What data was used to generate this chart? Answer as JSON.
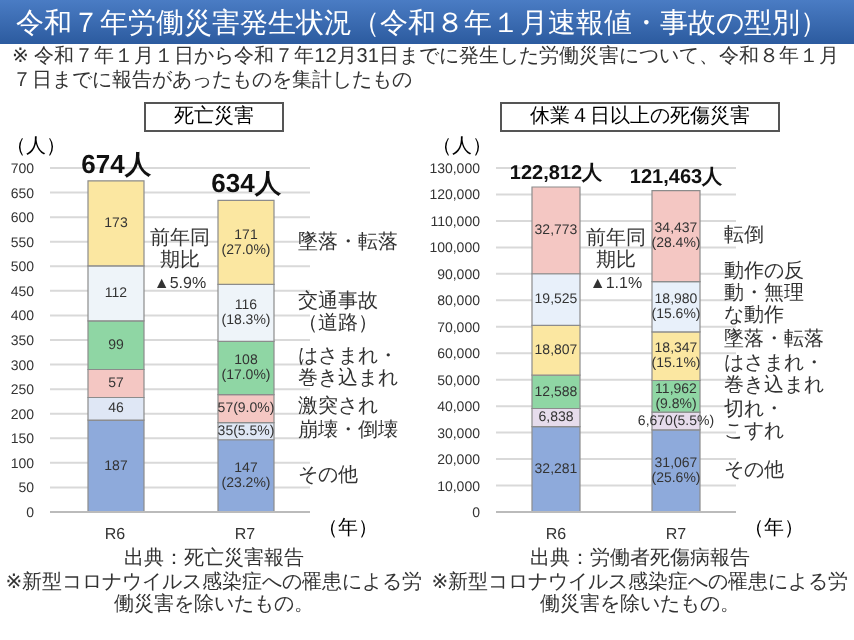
{
  "chart_data": [
    {
      "type": "other",
      "title": "令和７年労働災害発生状況（令和８年１月速報値・事故の型別）",
      "subtitle": "※ 令和７年１月１日から令和７年12月31日までに発生した労働災害について、令和８年１月７日までに報告があったものを集計したもの"
    },
    {
      "type": "bar",
      "title": "死亡災害",
      "ylabel": "（人）",
      "xlabel": "（年）",
      "categories": [
        "R6",
        "R7"
      ],
      "stacked": true,
      "grid": "y",
      "ylim": [
        0,
        700
      ],
      "yticks": [
        0,
        50,
        100,
        150,
        200,
        250,
        300,
        350,
        400,
        450,
        500,
        550,
        600,
        650,
        700
      ],
      "series": [
        {
          "name": "その他",
          "color": "#8eaadb",
          "values": [
            187,
            147
          ],
          "value_labels": [
            "187",
            "147 (23.2%)"
          ]
        },
        {
          "name": "崩壊・倒壊",
          "color": "#dfe7f5",
          "values": [
            46,
            35
          ],
          "value_labels": [
            "46",
            "35(5.5%)"
          ]
        },
        {
          "name": "激突され",
          "color": "#f4c7c3",
          "values": [
            57,
            57
          ],
          "value_labels": [
            "57",
            "57(9.0%)"
          ]
        },
        {
          "name": "はさまれ・巻き込まれ",
          "color": "#8fd6a4",
          "values": [
            99,
            108
          ],
          "value_labels": [
            "99",
            "108 (17.0%)"
          ]
        },
        {
          "name": "交通事故（道路）",
          "color": "#eef4f9",
          "values": [
            112,
            116
          ],
          "value_labels": [
            "112",
            "116 (18.3%)"
          ]
        },
        {
          "name": "墜落・転落",
          "color": "#fbe7a1",
          "values": [
            173,
            171
          ],
          "value_labels": [
            "173",
            "171 (27.0%)"
          ]
        }
      ],
      "totals": [
        "674人",
        "634人"
      ],
      "annotations": [
        "前年同期比",
        "▲5.9%",
        "出典：死亡災害報告",
        "※新型コロナウイルス感染症への罹患による労働災害を除いたもの。"
      ]
    },
    {
      "type": "bar",
      "title": "休業４日以上の死傷災害",
      "ylabel": "（人）",
      "xlabel": "（年）",
      "categories": [
        "R6",
        "R7"
      ],
      "stacked": true,
      "grid": "y",
      "ylim": [
        0,
        130000
      ],
      "yticks": [
        0,
        {
          "value": 10000,
          "label": "10,000"
        },
        {
          "value": 20000,
          "label": "20,000"
        },
        {
          "value": 30000,
          "label": "30,000"
        },
        {
          "value": 40000,
          "label": "40,000"
        },
        {
          "value": 50000,
          "label": "50,000"
        },
        {
          "value": 60000,
          "label": "60,000"
        },
        {
          "value": 70000,
          "label": "70,000"
        },
        {
          "value": 80000,
          "label": "80,000"
        },
        {
          "value": 90000,
          "label": "90,000"
        },
        {
          "value": 100000,
          "label": "100,000"
        },
        {
          "value": 110000,
          "label": "110,000"
        },
        {
          "value": 120000,
          "label": "120,000"
        },
        {
          "value": 130000,
          "label": "130,000"
        }
      ],
      "series": [
        {
          "name": "その他",
          "color": "#8eaadb",
          "values": [
            32281,
            31067
          ],
          "value_labels": [
            "32,281",
            "31,067 (25.6%)"
          ]
        },
        {
          "name": "切れ・こすれ",
          "color": "#e6dcec",
          "values": [
            6838,
            6670
          ],
          "value_labels": [
            "6,838",
            "6,670(5.5%)"
          ]
        },
        {
          "name": "はさまれ・巻き込まれ",
          "color": "#8fd6a4",
          "values": [
            12588,
            11962
          ],
          "value_labels": [
            "12,588",
            "11,962 (9.8%)"
          ]
        },
        {
          "name": "墜落・転落",
          "color": "#fbe7a1",
          "values": [
            18807,
            18347
          ],
          "value_labels": [
            "18,807",
            "18,347 (15.1%)"
          ]
        },
        {
          "name": "動作の反動・無理な動作",
          "color": "#e8f0fa",
          "values": [
            19525,
            18980
          ],
          "value_labels": [
            "19,525",
            "18,980 (15.6%)"
          ]
        },
        {
          "name": "転倒",
          "color": "#f4c7c3",
          "values": [
            32773,
            34437
          ],
          "value_labels": [
            "32,773",
            "34,437 (28.4%)"
          ]
        }
      ],
      "totals": [
        "122,812人",
        "121,463人"
      ],
      "annotations": [
        "前年同期比",
        "▲1.1%",
        "出典：労働者死傷病報告",
        "※新型コロナウイルス感染症への罹患による労働災害を除いたもの。"
      ]
    }
  ]
}
